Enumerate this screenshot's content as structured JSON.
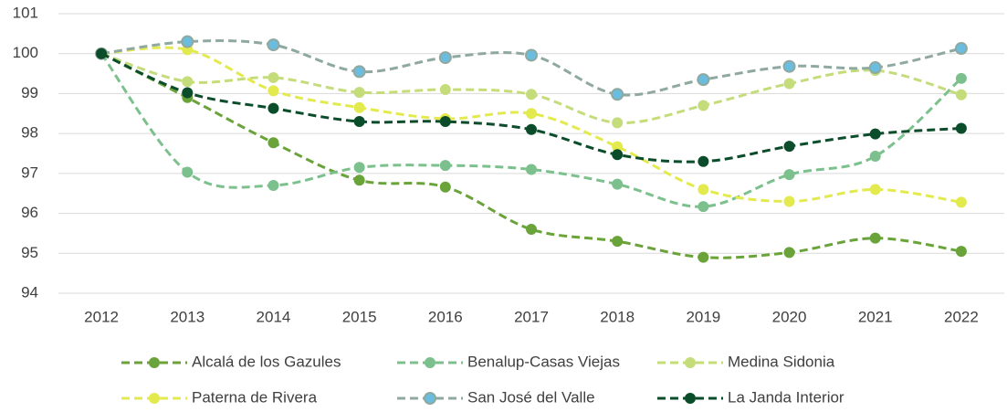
{
  "chart_data": {
    "type": "line",
    "categories": [
      "2012",
      "2013",
      "2014",
      "2015",
      "2016",
      "2017",
      "2018",
      "2019",
      "2020",
      "2021",
      "2022"
    ],
    "ylim": [
      94,
      101
    ],
    "yticks": [
      94,
      95,
      96,
      97,
      98,
      99,
      100,
      101
    ],
    "grid": true,
    "legend": "bottom",
    "series": [
      {
        "name": "Alcalá de los Gazules",
        "color": "#6aa33a",
        "values": [
          100,
          98.9,
          97.77,
          96.83,
          96.66,
          95.6,
          95.3,
          94.9,
          95.02,
          95.38,
          95.05
        ]
      },
      {
        "name": "Benalup-Casas Viejas",
        "color": "#7cc08e",
        "values": [
          100,
          97.03,
          96.7,
          97.15,
          97.2,
          97.1,
          96.73,
          96.17,
          96.97,
          97.43,
          99.38
        ]
      },
      {
        "name": "Medina Sidonia",
        "color": "#c5dc7a",
        "values": [
          100,
          99.3,
          99.4,
          99.03,
          99.1,
          98.98,
          98.27,
          98.7,
          99.25,
          99.58,
          98.97
        ]
      },
      {
        "name": "Paterna de Rivera",
        "color": "#e3ea4e",
        "values": [
          100,
          100.1,
          99.07,
          98.65,
          98.37,
          98.5,
          97.67,
          96.6,
          96.3,
          96.6,
          96.28
        ]
      },
      {
        "name": "San José del Valle",
        "color": "#8fa8a0",
        "marker_color": "#6bbde0",
        "values": [
          100,
          100.3,
          100.22,
          99.55,
          99.9,
          99.96,
          98.98,
          99.35,
          99.68,
          99.65,
          100.13
        ]
      },
      {
        "name": "La Janda Interior",
        "color": "#0b4d2b",
        "values": [
          100,
          99.02,
          98.63,
          98.3,
          98.3,
          98.1,
          97.47,
          97.3,
          97.68,
          97.99,
          98.13
        ]
      }
    ]
  }
}
